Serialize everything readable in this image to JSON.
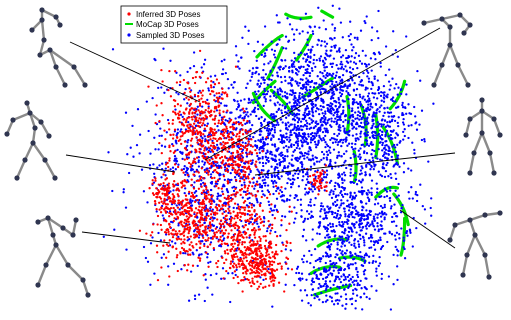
{
  "chart_data": {
    "type": "scatter",
    "title": "",
    "xlabel": "",
    "ylabel": "",
    "grid": false,
    "legend_placement": "top-center",
    "series": [
      {
        "name": "Inferred 3D Poses",
        "color": "#ff0000",
        "marker": "dot",
        "clusters": [
          {
            "cx": 0.29,
            "cy": 0.4,
            "sx": 0.05,
            "sy": 0.09,
            "n": 420
          },
          {
            "cx": 0.26,
            "cy": 0.7,
            "sx": 0.05,
            "sy": 0.07,
            "n": 380
          },
          {
            "cx": 0.4,
            "cy": 0.72,
            "sx": 0.05,
            "sy": 0.08,
            "n": 320
          },
          {
            "cx": 0.45,
            "cy": 0.85,
            "sx": 0.04,
            "sy": 0.04,
            "n": 260
          },
          {
            "cx": 0.4,
            "cy": 0.48,
            "sx": 0.03,
            "sy": 0.05,
            "n": 160
          },
          {
            "cx": 0.2,
            "cy": 0.62,
            "sx": 0.02,
            "sy": 0.03,
            "n": 80
          },
          {
            "cx": 0.62,
            "cy": 0.58,
            "sx": 0.015,
            "sy": 0.02,
            "n": 40
          }
        ]
      },
      {
        "name": "MoCap 3D Poses",
        "color": "#00dd00",
        "marker": "line-segments",
        "curves": [
          [
            [
              0.53,
              0.03
            ],
            [
              0.56,
              0.05
            ],
            [
              0.6,
              0.04
            ]
          ],
          [
            [
              0.63,
              0.02
            ],
            [
              0.66,
              0.04
            ]
          ],
          [
            [
              0.45,
              0.17
            ],
            [
              0.49,
              0.12
            ],
            [
              0.52,
              0.1
            ]
          ],
          [
            [
              0.48,
              0.24
            ],
            [
              0.5,
              0.2
            ],
            [
              0.52,
              0.14
            ]
          ],
          [
            [
              0.56,
              0.18
            ],
            [
              0.59,
              0.13
            ],
            [
              0.6,
              0.1
            ]
          ],
          [
            [
              0.58,
              0.3
            ],
            [
              0.62,
              0.27
            ],
            [
              0.66,
              0.24
            ]
          ],
          [
            [
              0.44,
              0.32
            ],
            [
              0.47,
              0.28
            ],
            [
              0.5,
              0.25
            ]
          ],
          [
            [
              0.44,
              0.29
            ],
            [
              0.46,
              0.35
            ],
            [
              0.5,
              0.38
            ]
          ],
          [
            [
              0.49,
              0.28
            ],
            [
              0.53,
              0.32
            ],
            [
              0.55,
              0.36
            ]
          ],
          [
            [
              0.7,
              0.3
            ],
            [
              0.71,
              0.36
            ],
            [
              0.7,
              0.42
            ]
          ],
          [
            [
              0.74,
              0.33
            ],
            [
              0.76,
              0.4
            ],
            [
              0.75,
              0.46
            ]
          ],
          [
            [
              0.78,
              0.36
            ],
            [
              0.79,
              0.43
            ],
            [
              0.78,
              0.5
            ]
          ],
          [
            [
              0.8,
              0.4
            ],
            [
              0.83,
              0.45
            ],
            [
              0.84,
              0.52
            ]
          ],
          [
            [
              0.82,
              0.34
            ],
            [
              0.85,
              0.3
            ],
            [
              0.86,
              0.25
            ]
          ],
          [
            [
              0.72,
              0.48
            ],
            [
              0.73,
              0.54
            ],
            [
              0.72,
              0.58
            ]
          ],
          [
            [
              0.78,
              0.63
            ],
            [
              0.81,
              0.59
            ],
            [
              0.84,
              0.6
            ]
          ],
          [
            [
              0.83,
              0.62
            ],
            [
              0.86,
              0.66
            ],
            [
              0.87,
              0.72
            ]
          ],
          [
            [
              0.86,
              0.7
            ],
            [
              0.86,
              0.78
            ],
            [
              0.85,
              0.82
            ]
          ],
          [
            [
              0.62,
              0.79
            ],
            [
              0.66,
              0.76
            ],
            [
              0.7,
              0.77
            ]
          ],
          [
            [
              0.6,
              0.88
            ],
            [
              0.64,
              0.85
            ],
            [
              0.68,
              0.86
            ]
          ],
          [
            [
              0.61,
              0.95
            ],
            [
              0.66,
              0.93
            ],
            [
              0.71,
              0.92
            ]
          ],
          [
            [
              0.68,
              0.83
            ],
            [
              0.72,
              0.82
            ],
            [
              0.75,
              0.84
            ]
          ]
        ]
      },
      {
        "name": "Sampled 3D Poses",
        "color": "#0000ff",
        "marker": "dot",
        "clusters": [
          {
            "cx": 0.62,
            "cy": 0.33,
            "sx": 0.1,
            "sy": 0.13,
            "n": 1300
          },
          {
            "cx": 0.72,
            "cy": 0.7,
            "sx": 0.08,
            "sy": 0.09,
            "n": 650
          },
          {
            "cx": 0.33,
            "cy": 0.55,
            "sx": 0.1,
            "sy": 0.18,
            "n": 900
          },
          {
            "cx": 0.8,
            "cy": 0.42,
            "sx": 0.04,
            "sy": 0.08,
            "n": 250
          },
          {
            "cx": 0.66,
            "cy": 0.9,
            "sx": 0.05,
            "sy": 0.05,
            "n": 200
          },
          {
            "cx": 0.5,
            "cy": 0.5,
            "sx": 0.06,
            "sy": 0.1,
            "n": 300
          }
        ]
      }
    ],
    "insets": [
      "skeleton-pose-1",
      "skeleton-pose-2",
      "skeleton-pose-3",
      "skeleton-pose-4",
      "skeleton-pose-5",
      "skeleton-pose-6",
      "skeleton-pose-7"
    ]
  }
}
